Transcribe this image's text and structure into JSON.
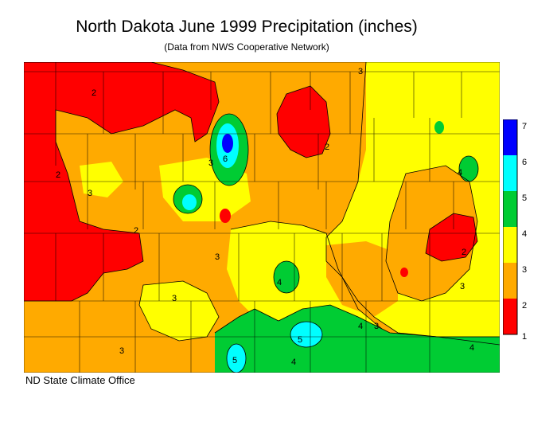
{
  "title": "North Dakota June 1999 Precipitation (inches)",
  "subtitle": "(Data from NWS Cooperative Network)",
  "footer": "ND State Climate Office",
  "legend": {
    "ticks": [
      "1",
      "2",
      "3",
      "4",
      "5",
      "6",
      "7"
    ],
    "bands": [
      {
        "range": "1-2",
        "color": "#ff0000"
      },
      {
        "range": "2-3",
        "color": "#ffaa00"
      },
      {
        "range": "3-4",
        "color": "#ffff00"
      },
      {
        "range": "4-5",
        "color": "#00cc33"
      },
      {
        "range": "5-6",
        "color": "#00ffff"
      },
      {
        "range": "6-7",
        "color": "#0000ff"
      }
    ]
  },
  "contour_labels": [
    "2",
    "3",
    "4",
    "5",
    "6"
  ],
  "colors": {
    "red": "#ff0000",
    "orange": "#ffaa00",
    "yellow": "#ffff00",
    "green": "#00cc33",
    "cyan": "#00ffff",
    "blue": "#0000ff"
  }
}
